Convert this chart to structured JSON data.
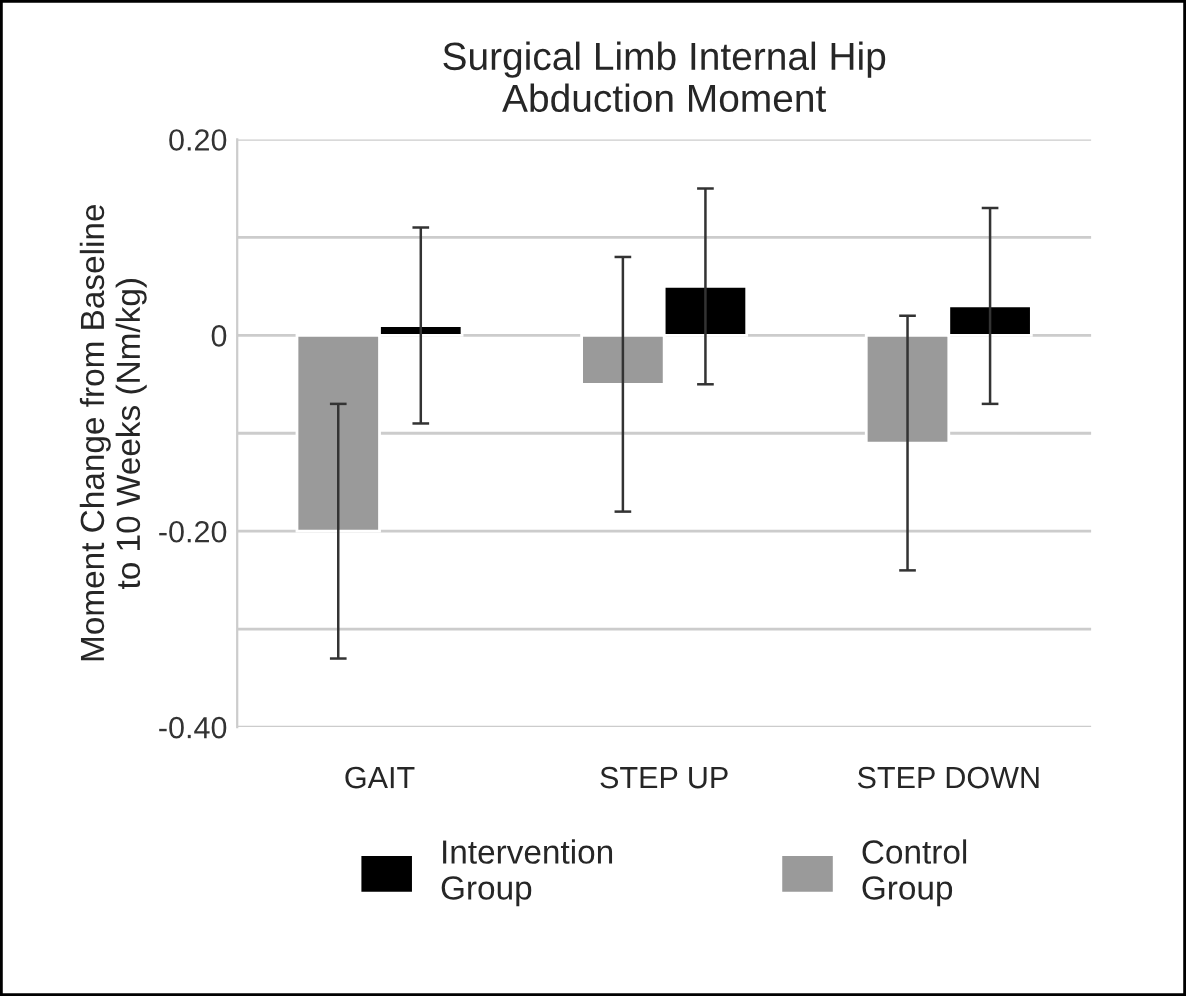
{
  "chart_data": {
    "type": "bar",
    "title": "Surgical Limb Internal Hip\nAbduction Moment",
    "ylabel": "Moment Change from Baseline\nto 10 Weeks (Nm/kg)",
    "categories": [
      "GAIT",
      "STEP UP",
      "STEP DOWN"
    ],
    "series": [
      {
        "name": "Control\nGroup",
        "color": "#9a9a9a",
        "values": [
          -0.2,
          -0.05,
          -0.11
        ],
        "errors": [
          0.13,
          0.13,
          0.13
        ]
      },
      {
        "name": "Intervention\nGroup",
        "color": "#000000",
        "values": [
          0.01,
          0.05,
          0.03
        ],
        "errors": [
          0.1,
          0.1,
          0.1
        ]
      }
    ],
    "ylim": [
      -0.4,
      0.2
    ],
    "yticks": [
      {
        "value": -0.4,
        "label": "-0.40"
      },
      {
        "value": -0.3,
        "label": null
      },
      {
        "value": -0.2,
        "label": "-0.20"
      },
      {
        "value": -0.1,
        "label": null
      },
      {
        "value": 0,
        "label": "0"
      },
      {
        "value": 0.1,
        "label": null
      },
      {
        "value": 0.2,
        "label": "0.20"
      }
    ],
    "grid": "y",
    "legend": "bottom"
  }
}
